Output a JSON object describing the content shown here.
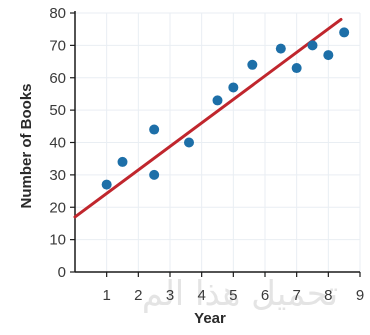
{
  "chart_data": {
    "type": "scatter",
    "title": "",
    "xlabel": "Year",
    "ylabel": "Number of Books",
    "xlim": [
      0,
      9
    ],
    "ylim": [
      0,
      80
    ],
    "x_ticks": [
      1,
      2,
      3,
      4,
      5,
      6,
      7,
      8,
      9
    ],
    "y_ticks": [
      0,
      10,
      20,
      30,
      40,
      50,
      60,
      70,
      80
    ],
    "grid": true,
    "points": [
      {
        "x": 1.0,
        "y": 27
      },
      {
        "x": 1.5,
        "y": 34
      },
      {
        "x": 2.5,
        "y": 30
      },
      {
        "x": 2.5,
        "y": 44
      },
      {
        "x": 3.6,
        "y": 40
      },
      {
        "x": 4.5,
        "y": 53
      },
      {
        "x": 5.0,
        "y": 57
      },
      {
        "x": 5.6,
        "y": 64
      },
      {
        "x": 6.5,
        "y": 69
      },
      {
        "x": 7.0,
        "y": 63
      },
      {
        "x": 7.5,
        "y": 70
      },
      {
        "x": 8.0,
        "y": 67
      },
      {
        "x": 8.5,
        "y": 74
      }
    ],
    "trend_line": {
      "x": [
        0,
        8.4
      ],
      "y": [
        17,
        78
      ]
    },
    "point_color": "#1d6fa8",
    "line_color": "#c0262d",
    "grid_color": "#e9eef3",
    "axis_color": "#1a1a1a"
  },
  "watermark": "تحميل هذا الم"
}
